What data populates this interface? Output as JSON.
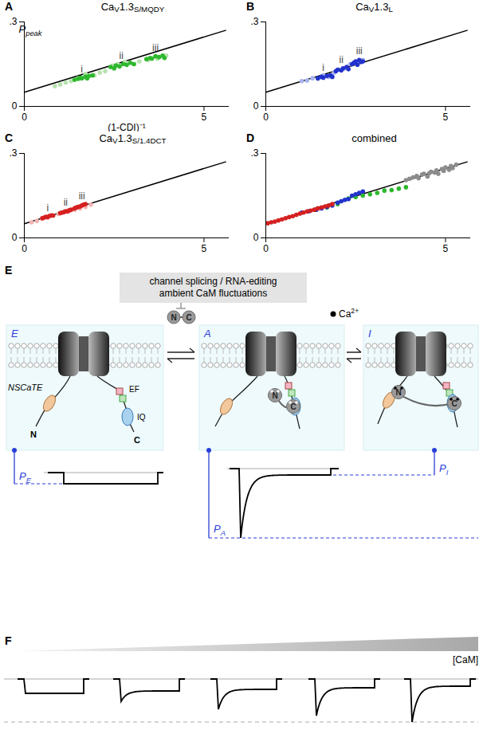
{
  "chart_data": [
    {
      "type": "scatter",
      "letter": "A",
      "title": [
        {
          "t": "Ca"
        },
        {
          "sub": "V"
        },
        {
          "t": "1.3"
        },
        {
          "sub": "S/MQDY"
        }
      ],
      "ylabel": [
        {
          "t": "P"
        },
        {
          "sub": "peak"
        }
      ],
      "xlabel": "(1-CDI)⁻¹",
      "xlim": [
        0,
        5.7
      ],
      "ylim": [
        0,
        0.3
      ],
      "xticks": [
        0,
        5
      ],
      "yticks": [
        0,
        {
          "value": 0.3,
          "label": ".3"
        }
      ],
      "series": [
        {
          "type": "line",
          "color": "#000000",
          "x": [
            0,
            5.6
          ],
          "values": [
            0.05,
            0.27
          ]
        },
        {
          "type": "scatter",
          "color": "#b7e2ae",
          "x": [
            0.85,
            1.0,
            1.15,
            1.3,
            1.5,
            1.7,
            1.95,
            2.1,
            2.25,
            2.45,
            2.6,
            2.8,
            3.05,
            3.2,
            3.45,
            3.7,
            3.95
          ],
          "values": [
            0.072,
            0.078,
            0.085,
            0.09,
            0.1,
            0.115,
            0.11,
            0.12,
            0.125,
            0.145,
            0.15,
            0.158,
            0.15,
            0.16,
            0.165,
            0.17,
            0.18
          ]
        },
        {
          "type": "scatter",
          "color": "#2eb82e",
          "x": [
            1.4,
            1.5,
            1.55,
            1.6,
            1.7,
            1.75,
            1.8,
            1.9,
            2.4,
            2.5,
            2.55,
            2.65,
            2.75,
            2.85,
            2.95,
            3.05,
            3.4,
            3.5,
            3.55,
            3.65,
            3.75,
            3.85,
            3.9
          ],
          "values": [
            0.095,
            0.098,
            0.102,
            0.1,
            0.105,
            0.1,
            0.108,
            0.11,
            0.14,
            0.135,
            0.145,
            0.142,
            0.15,
            0.148,
            0.155,
            0.15,
            0.168,
            0.172,
            0.17,
            0.178,
            0.175,
            0.18,
            0.172
          ]
        }
      ],
      "annotations": [
        {
          "text": "i",
          "x": 1.6,
          "y": 0.132
        },
        {
          "text": "ii",
          "x": 2.7,
          "y": 0.178
        },
        {
          "text": "iii",
          "x": 3.65,
          "y": 0.207
        }
      ]
    },
    {
      "type": "scatter",
      "letter": "B",
      "title": [
        {
          "t": "Ca"
        },
        {
          "sub": "V"
        },
        {
          "t": "1.3"
        },
        {
          "sub": "L"
        }
      ],
      "xlim": [
        0,
        5.7
      ],
      "ylim": [
        0,
        0.3
      ],
      "xticks": [
        0,
        5
      ],
      "yticks": [
        0,
        {
          "value": 0.3,
          "label": ".3"
        }
      ],
      "series": [
        {
          "type": "line",
          "color": "#000000",
          "x": [
            0,
            5.6
          ],
          "values": [
            0.05,
            0.27
          ]
        },
        {
          "type": "scatter",
          "color": "#aab4ee",
          "x": [
            1.0,
            1.15,
            1.3,
            1.45,
            1.6,
            1.75,
            1.9,
            2.05,
            2.2,
            2.35,
            2.5,
            2.6,
            2.7
          ],
          "values": [
            0.09,
            0.092,
            0.1,
            0.098,
            0.11,
            0.105,
            0.12,
            0.13,
            0.135,
            0.15,
            0.155,
            0.16,
            0.165
          ]
        },
        {
          "type": "scatter",
          "color": "#2233cc",
          "x": [
            1.45,
            1.55,
            1.6,
            1.7,
            1.8,
            1.85,
            1.95,
            2.0,
            2.1,
            2.15,
            2.25,
            2.3,
            2.4,
            2.45,
            2.5,
            2.55,
            2.6,
            2.65,
            2.7
          ],
          "values": [
            0.1,
            0.105,
            0.102,
            0.108,
            0.11,
            0.105,
            0.125,
            0.13,
            0.128,
            0.135,
            0.14,
            0.132,
            0.15,
            0.155,
            0.16,
            0.148,
            0.165,
            0.158,
            0.16
          ]
        }
      ],
      "annotations": [
        {
          "text": "i",
          "x": 1.6,
          "y": 0.138
        },
        {
          "text": "ii",
          "x": 2.1,
          "y": 0.165
        },
        {
          "text": "iii",
          "x": 2.6,
          "y": 0.195
        }
      ]
    },
    {
      "type": "scatter",
      "letter": "C",
      "title": [
        {
          "t": "Ca"
        },
        {
          "sub": "V"
        },
        {
          "t": "1.3"
        },
        {
          "sub": "S/1.4DCT"
        }
      ],
      "xlim": [
        0,
        5.7
      ],
      "ylim": [
        0,
        0.3
      ],
      "xticks": [
        0,
        5
      ],
      "yticks": [
        0,
        {
          "value": 0.3,
          "label": ".3"
        }
      ],
      "series": [
        {
          "type": "line",
          "color": "#000000",
          "x": [
            0,
            5.6
          ],
          "values": [
            0.05,
            0.27
          ]
        },
        {
          "type": "scatter",
          "color": "#f2b3b3",
          "x": [
            0.2,
            0.35,
            0.5,
            0.65,
            0.8,
            0.95,
            1.1,
            1.25,
            1.4,
            1.55,
            1.7,
            1.85
          ],
          "values": [
            0.055,
            0.06,
            0.068,
            0.072,
            0.08,
            0.085,
            0.09,
            0.095,
            0.1,
            0.105,
            0.11,
            0.118
          ]
        },
        {
          "type": "scatter",
          "color": "#d62020",
          "x": [
            0.5,
            0.55,
            0.6,
            0.65,
            0.7,
            0.75,
            0.8,
            1.0,
            1.05,
            1.1,
            1.15,
            1.2,
            1.25,
            1.3,
            1.4,
            1.45,
            1.5,
            1.55,
            1.6,
            1.65,
            1.7
          ],
          "values": [
            0.07,
            0.072,
            0.075,
            0.074,
            0.078,
            0.08,
            0.079,
            0.088,
            0.09,
            0.092,
            0.095,
            0.094,
            0.098,
            0.1,
            0.105,
            0.108,
            0.11,
            0.112,
            0.115,
            0.118,
            0.12
          ]
        }
      ],
      "annotations": [
        {
          "text": "i",
          "x": 0.65,
          "y": 0.105
        },
        {
          "text": "ii",
          "x": 1.15,
          "y": 0.125
        },
        {
          "text": "iii",
          "x": 1.6,
          "y": 0.147
        }
      ]
    },
    {
      "type": "scatter",
      "letter": "D",
      "title": [
        {
          "t": "combined"
        }
      ],
      "xlim": [
        0,
        5.7
      ],
      "ylim": [
        0,
        0.3
      ],
      "xticks": [
        0,
        5
      ],
      "yticks": [
        0,
        {
          "value": 0.3,
          "label": ".3"
        }
      ],
      "series": [
        {
          "type": "line",
          "color": "#000000",
          "x": [
            0,
            5.6
          ],
          "values": [
            0.05,
            0.27
          ]
        },
        {
          "type": "scatter",
          "color": "#8c8c8c",
          "x": [
            3.9,
            4.0,
            4.1,
            4.2,
            4.25,
            4.35,
            4.4,
            4.5,
            4.55,
            4.6,
            4.7,
            4.75,
            4.8,
            4.9,
            4.95,
            5.0,
            5.1,
            5.15,
            5.2,
            5.3
          ],
          "values": [
            0.205,
            0.21,
            0.215,
            0.22,
            0.212,
            0.225,
            0.228,
            0.218,
            0.23,
            0.235,
            0.232,
            0.24,
            0.228,
            0.245,
            0.238,
            0.25,
            0.242,
            0.255,
            0.248,
            0.26
          ]
        },
        {
          "type": "scatter",
          "color": "#2eb82e",
          "x": [
            1.4,
            1.7,
            2.0,
            2.3,
            2.5,
            2.7,
            2.9,
            3.1,
            3.3,
            3.5,
            3.7,
            3.9
          ],
          "values": [
            0.1,
            0.108,
            0.12,
            0.14,
            0.145,
            0.15,
            0.155,
            0.16,
            0.168,
            0.17,
            0.175,
            0.18
          ]
        },
        {
          "type": "scatter",
          "color": "#2233cc",
          "x": [
            1.0,
            1.2,
            1.4,
            1.55,
            1.7,
            1.85,
            2.0,
            2.1,
            2.2,
            2.3,
            2.4,
            2.5,
            2.6,
            2.7
          ],
          "values": [
            0.09,
            0.095,
            0.1,
            0.105,
            0.11,
            0.115,
            0.125,
            0.13,
            0.135,
            0.138,
            0.15,
            0.155,
            0.16,
            0.165
          ]
        },
        {
          "type": "scatter",
          "color": "#d62020",
          "x": [
            0.05,
            0.15,
            0.25,
            0.35,
            0.45,
            0.55,
            0.65,
            0.75,
            0.85,
            0.95,
            1.05,
            1.15,
            1.25,
            1.35,
            1.45,
            1.55,
            1.65,
            1.75,
            1.85
          ],
          "values": [
            0.052,
            0.055,
            0.058,
            0.062,
            0.066,
            0.07,
            0.074,
            0.077,
            0.082,
            0.086,
            0.09,
            0.094,
            0.097,
            0.1,
            0.105,
            0.108,
            0.112,
            0.115,
            0.12
          ]
        }
      ]
    }
  ],
  "diagram": {
    "E": {
      "letter": "E",
      "box_lines": [
        "channel splicing / RNA-editing",
        "ambient CaM fluctuations"
      ],
      "states": [
        "E",
        "A",
        "I"
      ],
      "channel_labels": {
        "NSCaTE": "NSCaTE",
        "EF": "EF",
        "IQ": "IQ",
        "termini": [
          "N",
          "C"
        ]
      },
      "cam_lobes": [
        "N",
        "C"
      ],
      "ca_label": [
        {
          "t": "Ca"
        },
        {
          "sup": "2+"
        }
      ],
      "levels": [
        [
          {
            "t": "P"
          },
          {
            "sub": "E"
          }
        ],
        [
          {
            "t": "P"
          },
          {
            "sub": "A"
          }
        ],
        [
          {
            "t": "P"
          },
          {
            "sub": "I"
          }
        ]
      ]
    },
    "F": {
      "letter": "F",
      "label": "[CaM]"
    }
  }
}
